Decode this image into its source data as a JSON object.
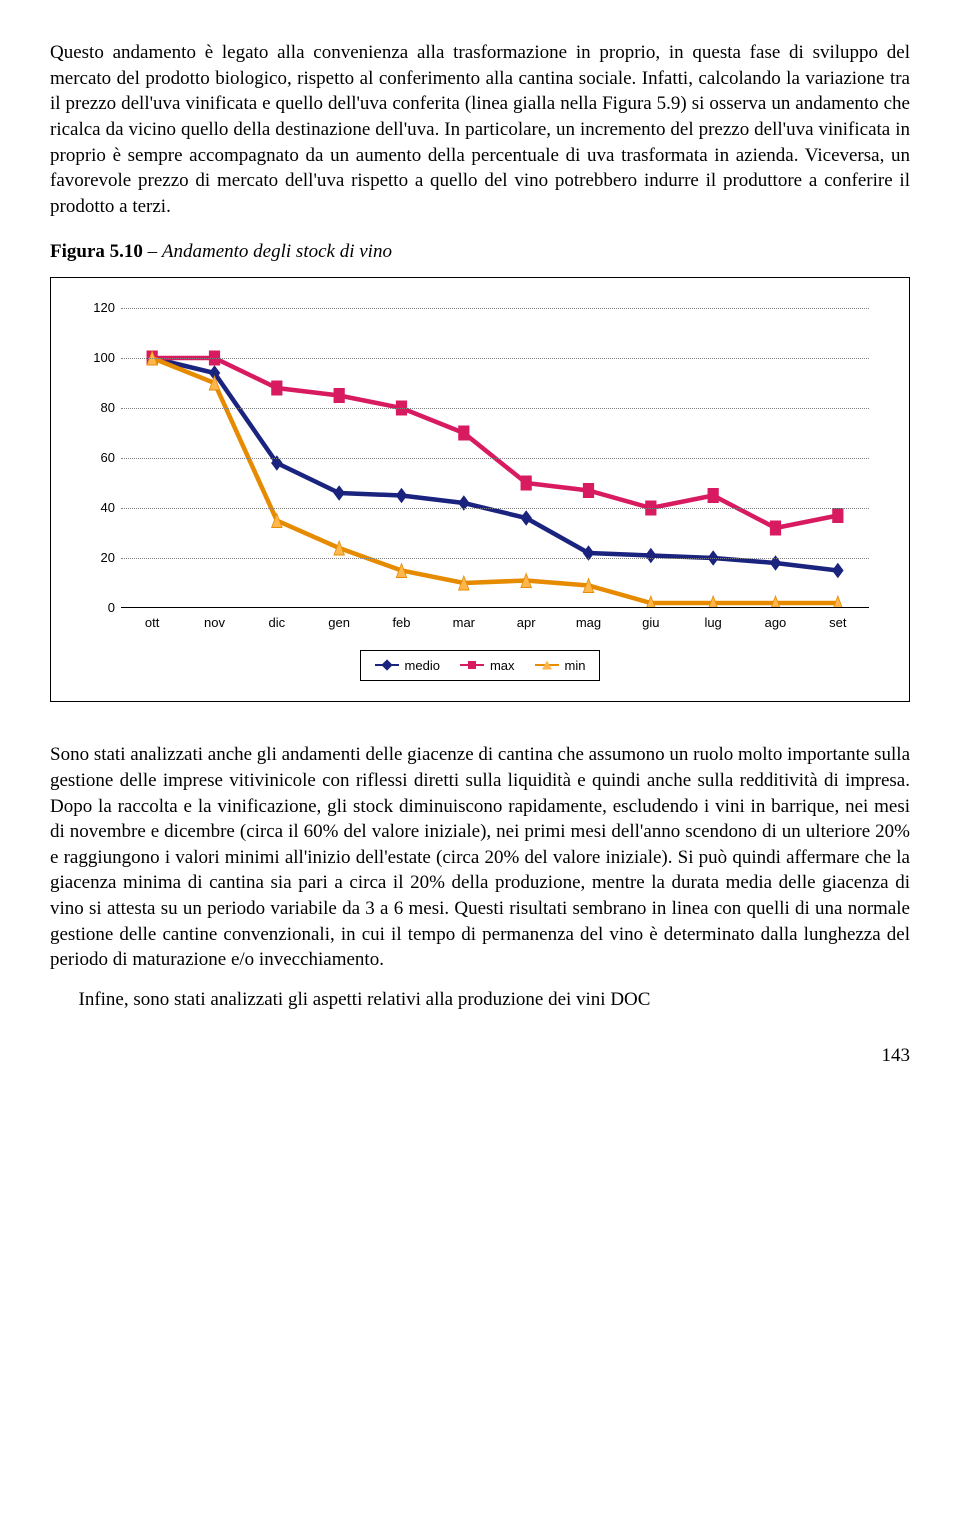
{
  "paragraphs": {
    "p1": "Questo andamento è legato alla convenienza alla trasformazione in proprio, in questa fase di sviluppo del mercato del prodotto biologico, rispetto al conferimento alla cantina sociale. Infatti, calcolando la variazione tra il prezzo dell'uva vinificata e quello dell'uva conferita (linea gialla nella Figura 5.9) si osserva un andamento che ricalca da vicino quello della destinazione dell'uva. In particolare, un incremento del prezzo dell'uva vinificata in proprio è sempre accompagnato da un aumento della percentuale di uva trasformata in azienda. Viceversa, un favorevole prezzo di mercato dell'uva rispetto a quello del vino potrebbero indurre il produttore a conferire il prodotto a terzi.",
    "p2": "Sono stati analizzati anche gli andamenti delle giacenze di cantina che assumono un ruolo molto importante sulla gestione delle imprese vitivinicole con riflessi diretti sulla liquidità e quindi anche sulla redditività di impresa. Dopo la raccolta e la vinificazione, gli stock diminuiscono rapidamente, escludendo i vini in barrique, nei mesi di novembre e dicembre (circa il 60% del valore iniziale), nei primi mesi dell'anno scendono di un ulteriore 20% e raggiungono i valori minimi all'inizio dell'estate (circa 20% del valore iniziale). Si può quindi affermare che la giacenza minima di cantina sia pari a circa il 20% della produzione, mentre la durata media delle giacenza di vino si attesta su un periodo variabile da  3 a 6 mesi. Questi risultati sembrano in linea con quelli di una normale gestione delle cantine convenzionali, in cui il tempo di permanenza del vino è determinato dalla lunghezza del periodo di maturazione e/o invecchiamento.",
    "p3": "Infine, sono stati analizzati gli aspetti relativi alla produzione dei vini DOC"
  },
  "figure": {
    "number": "Figura 5.10",
    "title": "Andamento degli stock di vino"
  },
  "chart": {
    "type": "line",
    "categories": [
      "ott",
      "nov",
      "dic",
      "gen",
      "feb",
      "mar",
      "apr",
      "mag",
      "giu",
      "lug",
      "ago",
      "set"
    ],
    "ylim": [
      0,
      120
    ],
    "ytick_step": 20,
    "yticks": [
      0,
      20,
      40,
      60,
      80,
      100,
      120
    ],
    "grid_color": "#808080",
    "background_color": "#ffffff",
    "series": [
      {
        "name": "medio",
        "color": "#1a237e",
        "marker": "diamond",
        "marker_fill": "#1a237e",
        "values": [
          100,
          94,
          58,
          46,
          45,
          42,
          36,
          22,
          21,
          20,
          18,
          15
        ]
      },
      {
        "name": "max",
        "color": "#d81b60",
        "marker": "square",
        "marker_fill": "#d81b60",
        "values": [
          100,
          100,
          88,
          85,
          80,
          70,
          50,
          47,
          40,
          45,
          32,
          37
        ]
      },
      {
        "name": "min",
        "color": "#e68a00",
        "marker": "triangle",
        "marker_fill": "#ffb74d",
        "values": [
          100,
          90,
          35,
          24,
          15,
          10,
          11,
          9,
          2,
          2,
          2,
          2
        ]
      }
    ],
    "legend_labels": {
      "medio": "medio",
      "max": "max",
      "min": "min"
    },
    "line_width": 1.5,
    "marker_size": 7,
    "label_fontsize": 13
  },
  "page_number": "143"
}
